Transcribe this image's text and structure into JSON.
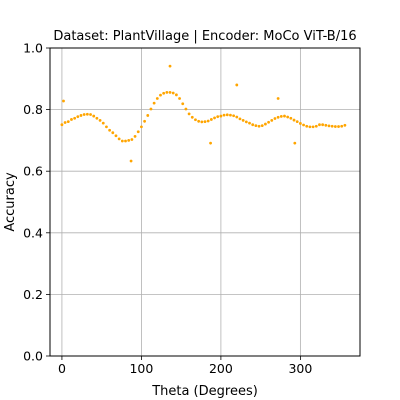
{
  "chart_data": {
    "type": "scatter",
    "title": "Dataset: PlantVillage | Encoder: MoCo ViT-B/16",
    "xlabel": "Theta (Degrees)",
    "ylabel": "Accuracy",
    "xlim": [
      -15,
      375
    ],
    "ylim": [
      0.0,
      1.0
    ],
    "xticks": [
      0,
      100,
      200,
      300
    ],
    "yticks": [
      0.0,
      0.2,
      0.4,
      0.6,
      0.8,
      1.0
    ],
    "xtick_labels": [
      "0",
      "100",
      "200",
      "300"
    ],
    "ytick_labels": [
      "0.0",
      "0.2",
      "0.4",
      "0.6",
      "0.8",
      "1.0"
    ],
    "grid": true,
    "marker_color": "#FFA500",
    "series": [
      {
        "x": [
          0,
          4,
          8,
          12,
          16,
          20,
          24,
          28,
          32,
          36,
          40,
          44,
          48,
          52,
          56,
          60,
          64,
          68,
          72,
          76,
          80,
          84,
          88,
          92,
          96,
          100,
          104,
          108,
          112,
          116,
          120,
          124,
          128,
          132,
          136,
          140,
          144,
          148,
          152,
          156,
          160,
          164,
          168,
          172,
          176,
          180,
          184,
          188,
          192,
          196,
          200,
          204,
          208,
          212,
          216,
          220,
          224,
          228,
          232,
          236,
          240,
          244,
          248,
          252,
          256,
          260,
          264,
          268,
          272,
          276,
          280,
          284,
          288,
          292,
          296,
          300,
          304,
          308,
          312,
          316,
          320,
          324,
          328,
          332,
          336,
          340,
          344,
          348,
          352,
          356
        ],
        "y": [
          0.751,
          0.758,
          0.761,
          0.768,
          0.772,
          0.777,
          0.781,
          0.784,
          0.785,
          0.784,
          0.779,
          0.772,
          0.765,
          0.756,
          0.744,
          0.733,
          0.725,
          0.715,
          0.705,
          0.698,
          0.698,
          0.7,
          0.703,
          0.713,
          0.728,
          0.744,
          0.762,
          0.781,
          0.802,
          0.821,
          0.836,
          0.847,
          0.853,
          0.856,
          0.856,
          0.854,
          0.848,
          0.836,
          0.819,
          0.802,
          0.786,
          0.775,
          0.767,
          0.762,
          0.76,
          0.761,
          0.763,
          0.768,
          0.773,
          0.777,
          0.779,
          0.782,
          0.783,
          0.782,
          0.78,
          0.776,
          0.77,
          0.765,
          0.76,
          0.756,
          0.751,
          0.748,
          0.746,
          0.748,
          0.753,
          0.759,
          0.765,
          0.771,
          0.775,
          0.778,
          0.779,
          0.776,
          0.772,
          0.766,
          0.761,
          0.755,
          0.75,
          0.746,
          0.744,
          0.744,
          0.746,
          0.751,
          0.751,
          0.749,
          0.747,
          0.746,
          0.745,
          0.745,
          0.746,
          0.749
        ]
      },
      {
        "x": [
          2,
          87,
          136,
          187,
          220,
          272,
          293
        ],
        "y": [
          0.828,
          0.633,
          0.941,
          0.691,
          0.88,
          0.836,
          0.691
        ]
      }
    ]
  }
}
